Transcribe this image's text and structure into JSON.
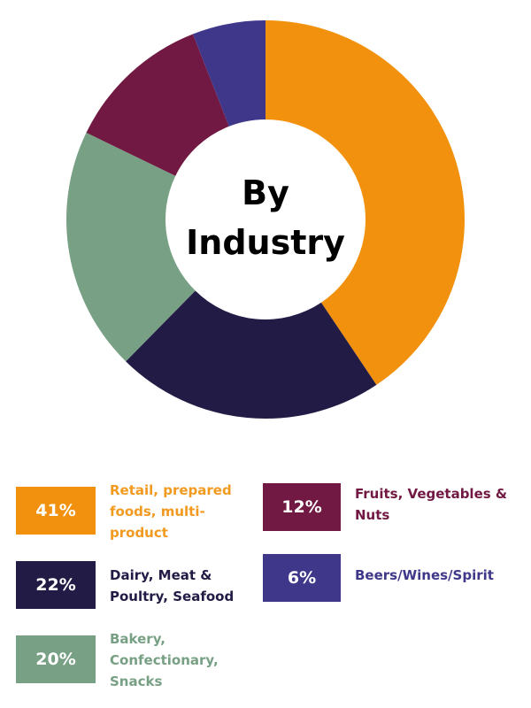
{
  "chart_data": {
    "type": "pie",
    "subtype": "donut",
    "title": "By Industry",
    "categories": [
      "Retail, prepared foods, multi-product",
      "Dairy, Meat & Poultry, Seafood",
      "Bakery, Confectionary, Snacks",
      "Fruits, Vegetables & Nuts",
      "Beers/Wines/Spirit"
    ],
    "values": [
      41,
      22,
      20,
      12,
      6
    ],
    "colors": [
      "#F2910D",
      "#221B45",
      "#78A084",
      "#711843",
      "#3F388A"
    ],
    "start_angle": "top, clockwise",
    "legend_position": "bottom"
  },
  "center": {
    "line1": "By",
    "line2": "Industry"
  },
  "legend": [
    {
      "pct": "41%",
      "label": "Retail, prepared foods, multi-product",
      "color": "#F2910D",
      "text_color": "#F29A1F"
    },
    {
      "pct": "22%",
      "label": "Dairy, Meat & Poultry, Seafood",
      "color": "#221B45",
      "text_color": "#221B45"
    },
    {
      "pct": "20%",
      "label": "Bakery, Confectionary, Snacks",
      "color": "#78A084",
      "text_color": "#78A084"
    },
    {
      "pct": "12%",
      "label": "Fruits, Vegetables & Nuts",
      "color": "#711843",
      "text_color": "#711843"
    },
    {
      "pct": "6%",
      "label": "Beers/Wines/Spirit",
      "color": "#3F388A",
      "text_color": "#3F388A"
    }
  ]
}
